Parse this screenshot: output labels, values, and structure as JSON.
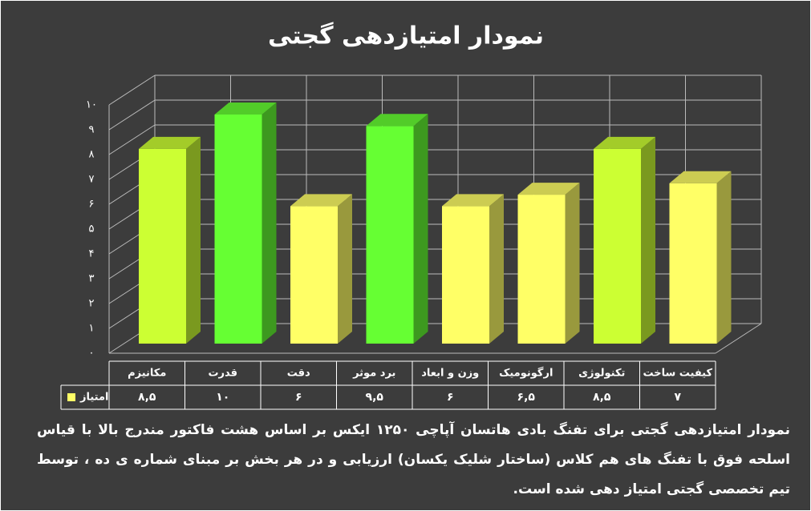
{
  "chart_data": {
    "type": "bar3d",
    "title": "نمودار امتیازدهی گجتی",
    "categories": [
      "مکانیزم",
      "قدرت",
      "دقت",
      "برد موثر",
      "وزن و ابعاد",
      "ارگونومیک",
      "تکنولوژی",
      "کیفیت ساخت"
    ],
    "series": [
      {
        "name": "امتیاز",
        "color": "#ffff66",
        "values": [
          8.5,
          10,
          6,
          9.5,
          6,
          6.5,
          8.5,
          7
        ],
        "value_labels": [
          "۸,۵",
          "۱۰",
          "۶",
          "۹,۵",
          "۶",
          "۶,۵",
          "۸,۵",
          "۷"
        ],
        "colors": [
          "#ccff33",
          "#66ff33",
          "#ffff66",
          "#66ff33",
          "#ffff66",
          "#ffff66",
          "#ccff33",
          "#ffff66"
        ]
      }
    ],
    "ylim": [
      0,
      10
    ],
    "yticks": [
      {
        "value": 0,
        "label": "۰"
      },
      {
        "value": 1,
        "label": "۱"
      },
      {
        "value": 2,
        "label": "۲"
      },
      {
        "value": 3,
        "label": "۳"
      },
      {
        "value": 4,
        "label": "۴"
      },
      {
        "value": 5,
        "label": "۵"
      },
      {
        "value": 6,
        "label": "۶"
      },
      {
        "value": 7,
        "label": "۷"
      },
      {
        "value": 8,
        "label": "۸"
      },
      {
        "value": 9,
        "label": "۹"
      },
      {
        "value": 10,
        "label": "۱۰"
      }
    ],
    "grid": true,
    "caption": "نمودار امتیازدهی گجتی برای تفنگ بادی هاتسان آپاچی ۱۲۵۰ ایکس بر اساس هشت فاکتور مندرج بالا با قیاس اسلحه فوق با تفنگ های هم کلاس (ساختار شلیک یکسان) ارزیابی و در هر بخش بر مبنای شماره ی ده ، توسط تیم تخصصی گجتی امتیاز دهی شده است."
  }
}
